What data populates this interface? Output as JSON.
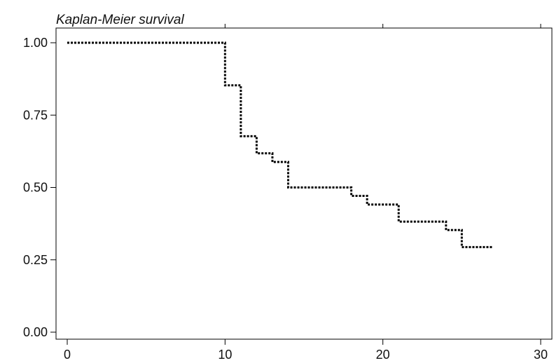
{
  "chart_data": {
    "type": "line",
    "title": "Kaplan-Meier survival",
    "xlabel": "",
    "ylabel": "",
    "xlim": [
      0,
      30
    ],
    "ylim": [
      0,
      1
    ],
    "x_ticks": [
      0,
      10,
      20,
      30
    ],
    "x_tick_labels": [
      "0",
      "10",
      "20",
      "30"
    ],
    "y_ticks": [
      0,
      0.25,
      0.5,
      0.75,
      1
    ],
    "y_tick_labels": [
      "0.00",
      "0.25",
      "0.50",
      "0.75",
      "1.00"
    ],
    "grid": false,
    "line_style": "dotted",
    "line_color": "#000000",
    "step": "post",
    "series": [
      {
        "x": [
          0,
          10,
          11,
          12,
          13,
          14,
          18,
          19,
          21,
          24,
          25,
          27
        ],
        "values": [
          1.0,
          0.853,
          0.677,
          0.618,
          0.588,
          0.5,
          0.471,
          0.441,
          0.382,
          0.353,
          0.294,
          0.294
        ]
      }
    ]
  }
}
